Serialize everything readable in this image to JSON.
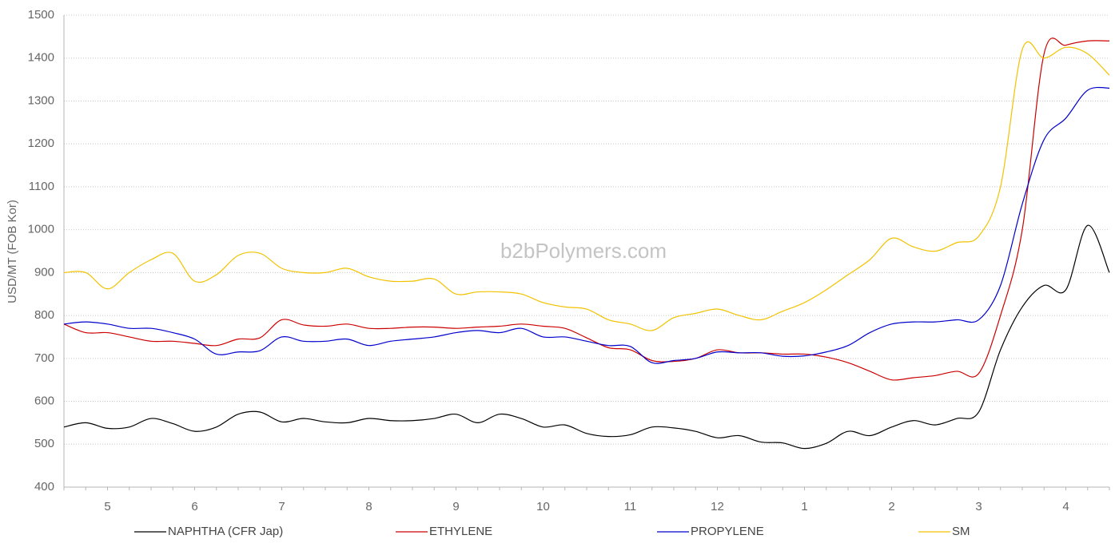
{
  "chart_data": {
    "type": "line",
    "watermark": "b2bPolymers.com",
    "y_label": "USD/MT (FOB Kor)",
    "categories": [
      null,
      null,
      "5",
      null,
      null,
      null,
      "6",
      null,
      null,
      null,
      "7",
      null,
      null,
      null,
      "8",
      null,
      null,
      null,
      "9",
      null,
      null,
      null,
      "10",
      null,
      null,
      null,
      "11",
      null,
      null,
      null,
      "12",
      null,
      null,
      null,
      "1",
      null,
      null,
      null,
      "2",
      null,
      null,
      null,
      "3",
      null,
      null,
      null,
      "4",
      null,
      null
    ],
    "series": [
      {
        "name": "NAPHTHA (CFR Jap)",
        "color": "#000000",
        "values": [
          540,
          550,
          537,
          540,
          560,
          548,
          530,
          540,
          570,
          575,
          552,
          560,
          552,
          550,
          560,
          555,
          555,
          560,
          570,
          550,
          570,
          560,
          540,
          545,
          525,
          518,
          522,
          540,
          538,
          530,
          515,
          520,
          505,
          503,
          490,
          502,
          530,
          520,
          540,
          555,
          545,
          560,
          575,
          720,
          820,
          870,
          860,
          1010,
          900
        ]
      },
      {
        "name": "ETHYLENE",
        "color": "#cc0000",
        "values": [
          780,
          760,
          760,
          750,
          740,
          740,
          735,
          730,
          745,
          748,
          790,
          778,
          775,
          780,
          770,
          770,
          773,
          773,
          770,
          773,
          775,
          780,
          775,
          770,
          748,
          725,
          720,
          695,
          693,
          700,
          720,
          713,
          713,
          710,
          710,
          703,
          690,
          670,
          650,
          655,
          660,
          670,
          665,
          800,
          1000,
          1410,
          1430,
          1440,
          1440
        ]
      },
      {
        "name": "PROPYLENE",
        "color": "#0000cc",
        "values": [
          780,
          785,
          780,
          770,
          770,
          760,
          745,
          710,
          715,
          718,
          750,
          740,
          740,
          745,
          730,
          740,
          745,
          750,
          760,
          765,
          760,
          770,
          750,
          750,
          740,
          730,
          728,
          690,
          695,
          700,
          715,
          713,
          713,
          705,
          706,
          715,
          730,
          760,
          780,
          785,
          785,
          790,
          790,
          870,
          1060,
          1210,
          1260,
          1325,
          1330
        ]
      },
      {
        "name": "SM",
        "color": "#f2c200",
        "values": [
          900,
          900,
          862,
          900,
          930,
          945,
          880,
          895,
          940,
          945,
          910,
          900,
          900,
          910,
          890,
          880,
          880,
          885,
          850,
          855,
          855,
          850,
          830,
          820,
          815,
          790,
          780,
          765,
          795,
          805,
          815,
          800,
          790,
          810,
          830,
          860,
          895,
          930,
          980,
          960,
          950,
          970,
          985,
          1100,
          1420,
          1400,
          1425,
          1410,
          1360
        ]
      }
    ],
    "ylim": [
      400,
      1500
    ],
    "yticks": [
      400,
      500,
      600,
      700,
      800,
      900,
      1000,
      1100,
      1200,
      1300,
      1400,
      1500
    ],
    "grid": true,
    "legend": "bottom"
  }
}
